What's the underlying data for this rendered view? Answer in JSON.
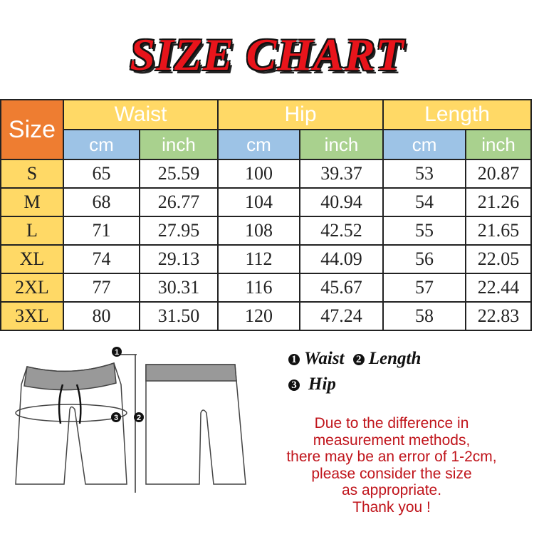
{
  "title": "SIZE CHART",
  "table": {
    "size_header": "Size",
    "groups": [
      "Waist",
      "Hip",
      "Length"
    ],
    "units": [
      "cm",
      "inch",
      "cm",
      "inch",
      "cm",
      "inch"
    ],
    "rows": [
      {
        "size": "S",
        "values": [
          "65",
          "25.59",
          "100",
          "39.37",
          "53",
          "20.87"
        ]
      },
      {
        "size": "M",
        "values": [
          "68",
          "26.77",
          "104",
          "40.94",
          "54",
          "21.26"
        ]
      },
      {
        "size": "L",
        "values": [
          "71",
          "27.95",
          "108",
          "42.52",
          "55",
          "21.65"
        ]
      },
      {
        "size": "XL",
        "values": [
          "74",
          "29.13",
          "112",
          "44.09",
          "56",
          "22.05"
        ]
      },
      {
        "size": "2XL",
        "values": [
          "77",
          "30.31",
          "116",
          "45.67",
          "57",
          "22.44"
        ]
      },
      {
        "size": "3XL",
        "values": [
          "80",
          "31.50",
          "120",
          "47.24",
          "58",
          "22.83"
        ]
      }
    ]
  },
  "colors": {
    "size_header": "#ee7d31",
    "group_header": "#ffd966",
    "cm_header": "#9dc3e6",
    "inch_header": "#a9d18e",
    "title": "#e8141b",
    "note": "#c0141b"
  },
  "legend": {
    "items": [
      {
        "num": "1",
        "label": "Waist"
      },
      {
        "num": "2",
        "label": "Length"
      },
      {
        "num": "3",
        "label": "Hip"
      }
    ]
  },
  "diagram": {
    "markers": [
      "1",
      "2",
      "3"
    ]
  },
  "note": [
    "Due to the difference in",
    "measurement methods,",
    "there may be an error of 1-2cm,",
    "please consider the size",
    "as appropriate.",
    "Thank you !"
  ]
}
